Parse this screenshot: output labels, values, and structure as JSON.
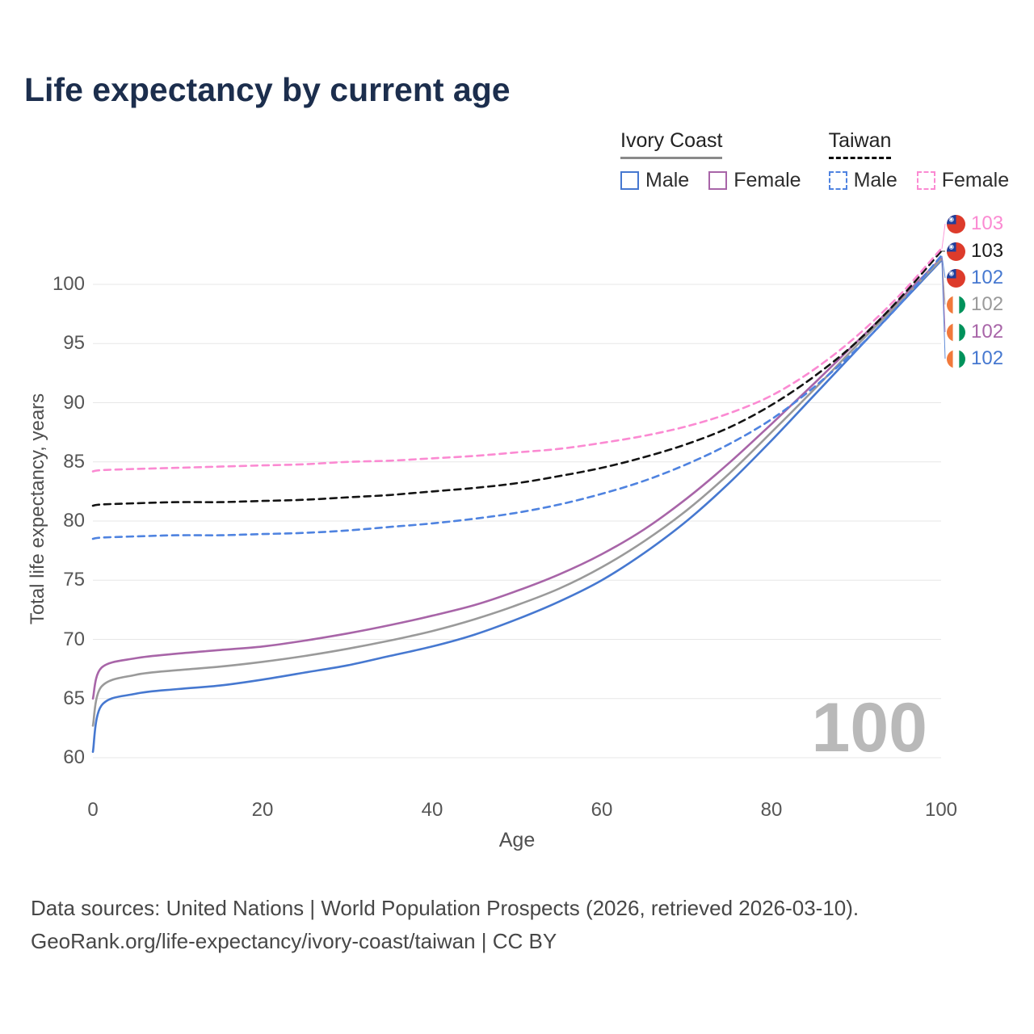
{
  "title": "Life expectancy by current age",
  "legend": {
    "groups": [
      {
        "label": "Ivory Coast",
        "style": "solid",
        "underline_color": "#8a8a8a",
        "items": [
          {
            "label": "Male",
            "color": "#4678d0",
            "dashed": false
          },
          {
            "label": "Female",
            "color": "#a865a8",
            "dashed": false
          }
        ]
      },
      {
        "label": "Taiwan",
        "style": "dashed",
        "underline_color": "#0a0a0a",
        "items": [
          {
            "label": "Male",
            "color": "#4f83e0",
            "dashed": true
          },
          {
            "label": "Female",
            "color": "#fb8ad2",
            "dashed": true
          }
        ]
      }
    ]
  },
  "chart_data": {
    "type": "line",
    "title": "Life expectancy by current age",
    "xlabel": "Age",
    "ylabel": "Total life expectancy, years",
    "xlim": [
      0,
      100
    ],
    "ylim": [
      58.5,
      105.5
    ],
    "x_ticks": [
      0,
      20,
      40,
      60,
      80,
      100
    ],
    "y_ticks": [
      60,
      65,
      70,
      75,
      80,
      85,
      90,
      95,
      100
    ],
    "grid": true,
    "legend_position": "top-right",
    "x": [
      0,
      1,
      5,
      10,
      15,
      20,
      25,
      30,
      35,
      40,
      45,
      50,
      55,
      60,
      65,
      70,
      75,
      80,
      85,
      90,
      95,
      100
    ],
    "series": [
      {
        "name": "Taiwan Female",
        "country": "Taiwan",
        "sex": "Female",
        "color": "#fb8ad2",
        "dashed": true,
        "values": [
          84.2,
          84.3,
          84.4,
          84.5,
          84.6,
          84.7,
          84.8,
          85.0,
          85.1,
          85.3,
          85.5,
          85.8,
          86.1,
          86.6,
          87.2,
          88.0,
          89.1,
          90.6,
          92.8,
          95.6,
          99.0,
          103.0
        ]
      },
      {
        "name": "Taiwan Both sexes",
        "country": "Taiwan",
        "sex": "Both",
        "color": "#141414",
        "dashed": true,
        "values": [
          81.3,
          81.4,
          81.5,
          81.6,
          81.6,
          81.7,
          81.8,
          82.0,
          82.2,
          82.5,
          82.8,
          83.2,
          83.8,
          84.5,
          85.4,
          86.5,
          87.9,
          89.8,
          92.2,
          95.1,
          98.7,
          102.8
        ]
      },
      {
        "name": "Taiwan Male",
        "country": "Taiwan",
        "sex": "Male",
        "color": "#4f83e0",
        "dashed": true,
        "values": [
          78.5,
          78.6,
          78.7,
          78.8,
          78.8,
          78.9,
          79.0,
          79.2,
          79.5,
          79.8,
          80.2,
          80.7,
          81.4,
          82.3,
          83.4,
          84.8,
          86.5,
          88.6,
          91.3,
          94.5,
          98.2,
          102.4
        ]
      },
      {
        "name": "Ivory Coast Both sexes",
        "country": "Ivory Coast",
        "sex": "Both",
        "color": "#9a9a9a",
        "dashed": false,
        "values": [
          62.7,
          66.0,
          67.0,
          67.4,
          67.7,
          68.1,
          68.6,
          69.2,
          69.9,
          70.7,
          71.7,
          72.9,
          74.3,
          76.1,
          78.3,
          80.9,
          84.0,
          87.5,
          91.1,
          94.8,
          98.4,
          102.1
        ]
      },
      {
        "name": "Ivory Coast Female",
        "country": "Ivory Coast",
        "sex": "Female",
        "color": "#a865a8",
        "dashed": false,
        "values": [
          65.0,
          67.6,
          68.4,
          68.8,
          69.1,
          69.4,
          69.9,
          70.5,
          71.2,
          72.0,
          72.9,
          74.1,
          75.5,
          77.2,
          79.3,
          81.9,
          84.9,
          88.2,
          91.6,
          95.1,
          98.6,
          102.2
        ]
      },
      {
        "name": "Ivory Coast Male",
        "country": "Ivory Coast",
        "sex": "Male",
        "color": "#4678d0",
        "dashed": false,
        "values": [
          60.5,
          64.4,
          65.4,
          65.8,
          66.1,
          66.6,
          67.2,
          67.8,
          68.6,
          69.4,
          70.4,
          71.7,
          73.2,
          75.0,
          77.3,
          80.0,
          83.2,
          86.8,
          90.6,
          94.4,
          98.2,
          102.0
        ]
      }
    ]
  },
  "end_labels": [
    {
      "value": "103",
      "color": "#fb8ad2",
      "flag": "taiwan-flag-icon"
    },
    {
      "value": "103",
      "color": "#1a1a1a",
      "flag": "taiwan-flag-icon"
    },
    {
      "value": "102",
      "color": "#4678d0",
      "flag": "taiwan-flag-icon"
    },
    {
      "value": "102",
      "color": "#9a9a9a",
      "flag": "ivory-coast-flag-icon"
    },
    {
      "value": "102",
      "color": "#a865a8",
      "flag": "ivory-coast-flag-icon"
    },
    {
      "value": "102",
      "color": "#4678d0",
      "flag": "ivory-coast-flag-icon"
    }
  ],
  "watermark": "100",
  "footer": {
    "line1": "Data sources: United Nations | World Population Prospects (2026, retrieved 2026-03-10).",
    "line2": "GeoRank.org/life-expectancy/ivory-coast/taiwan | CC BY"
  }
}
